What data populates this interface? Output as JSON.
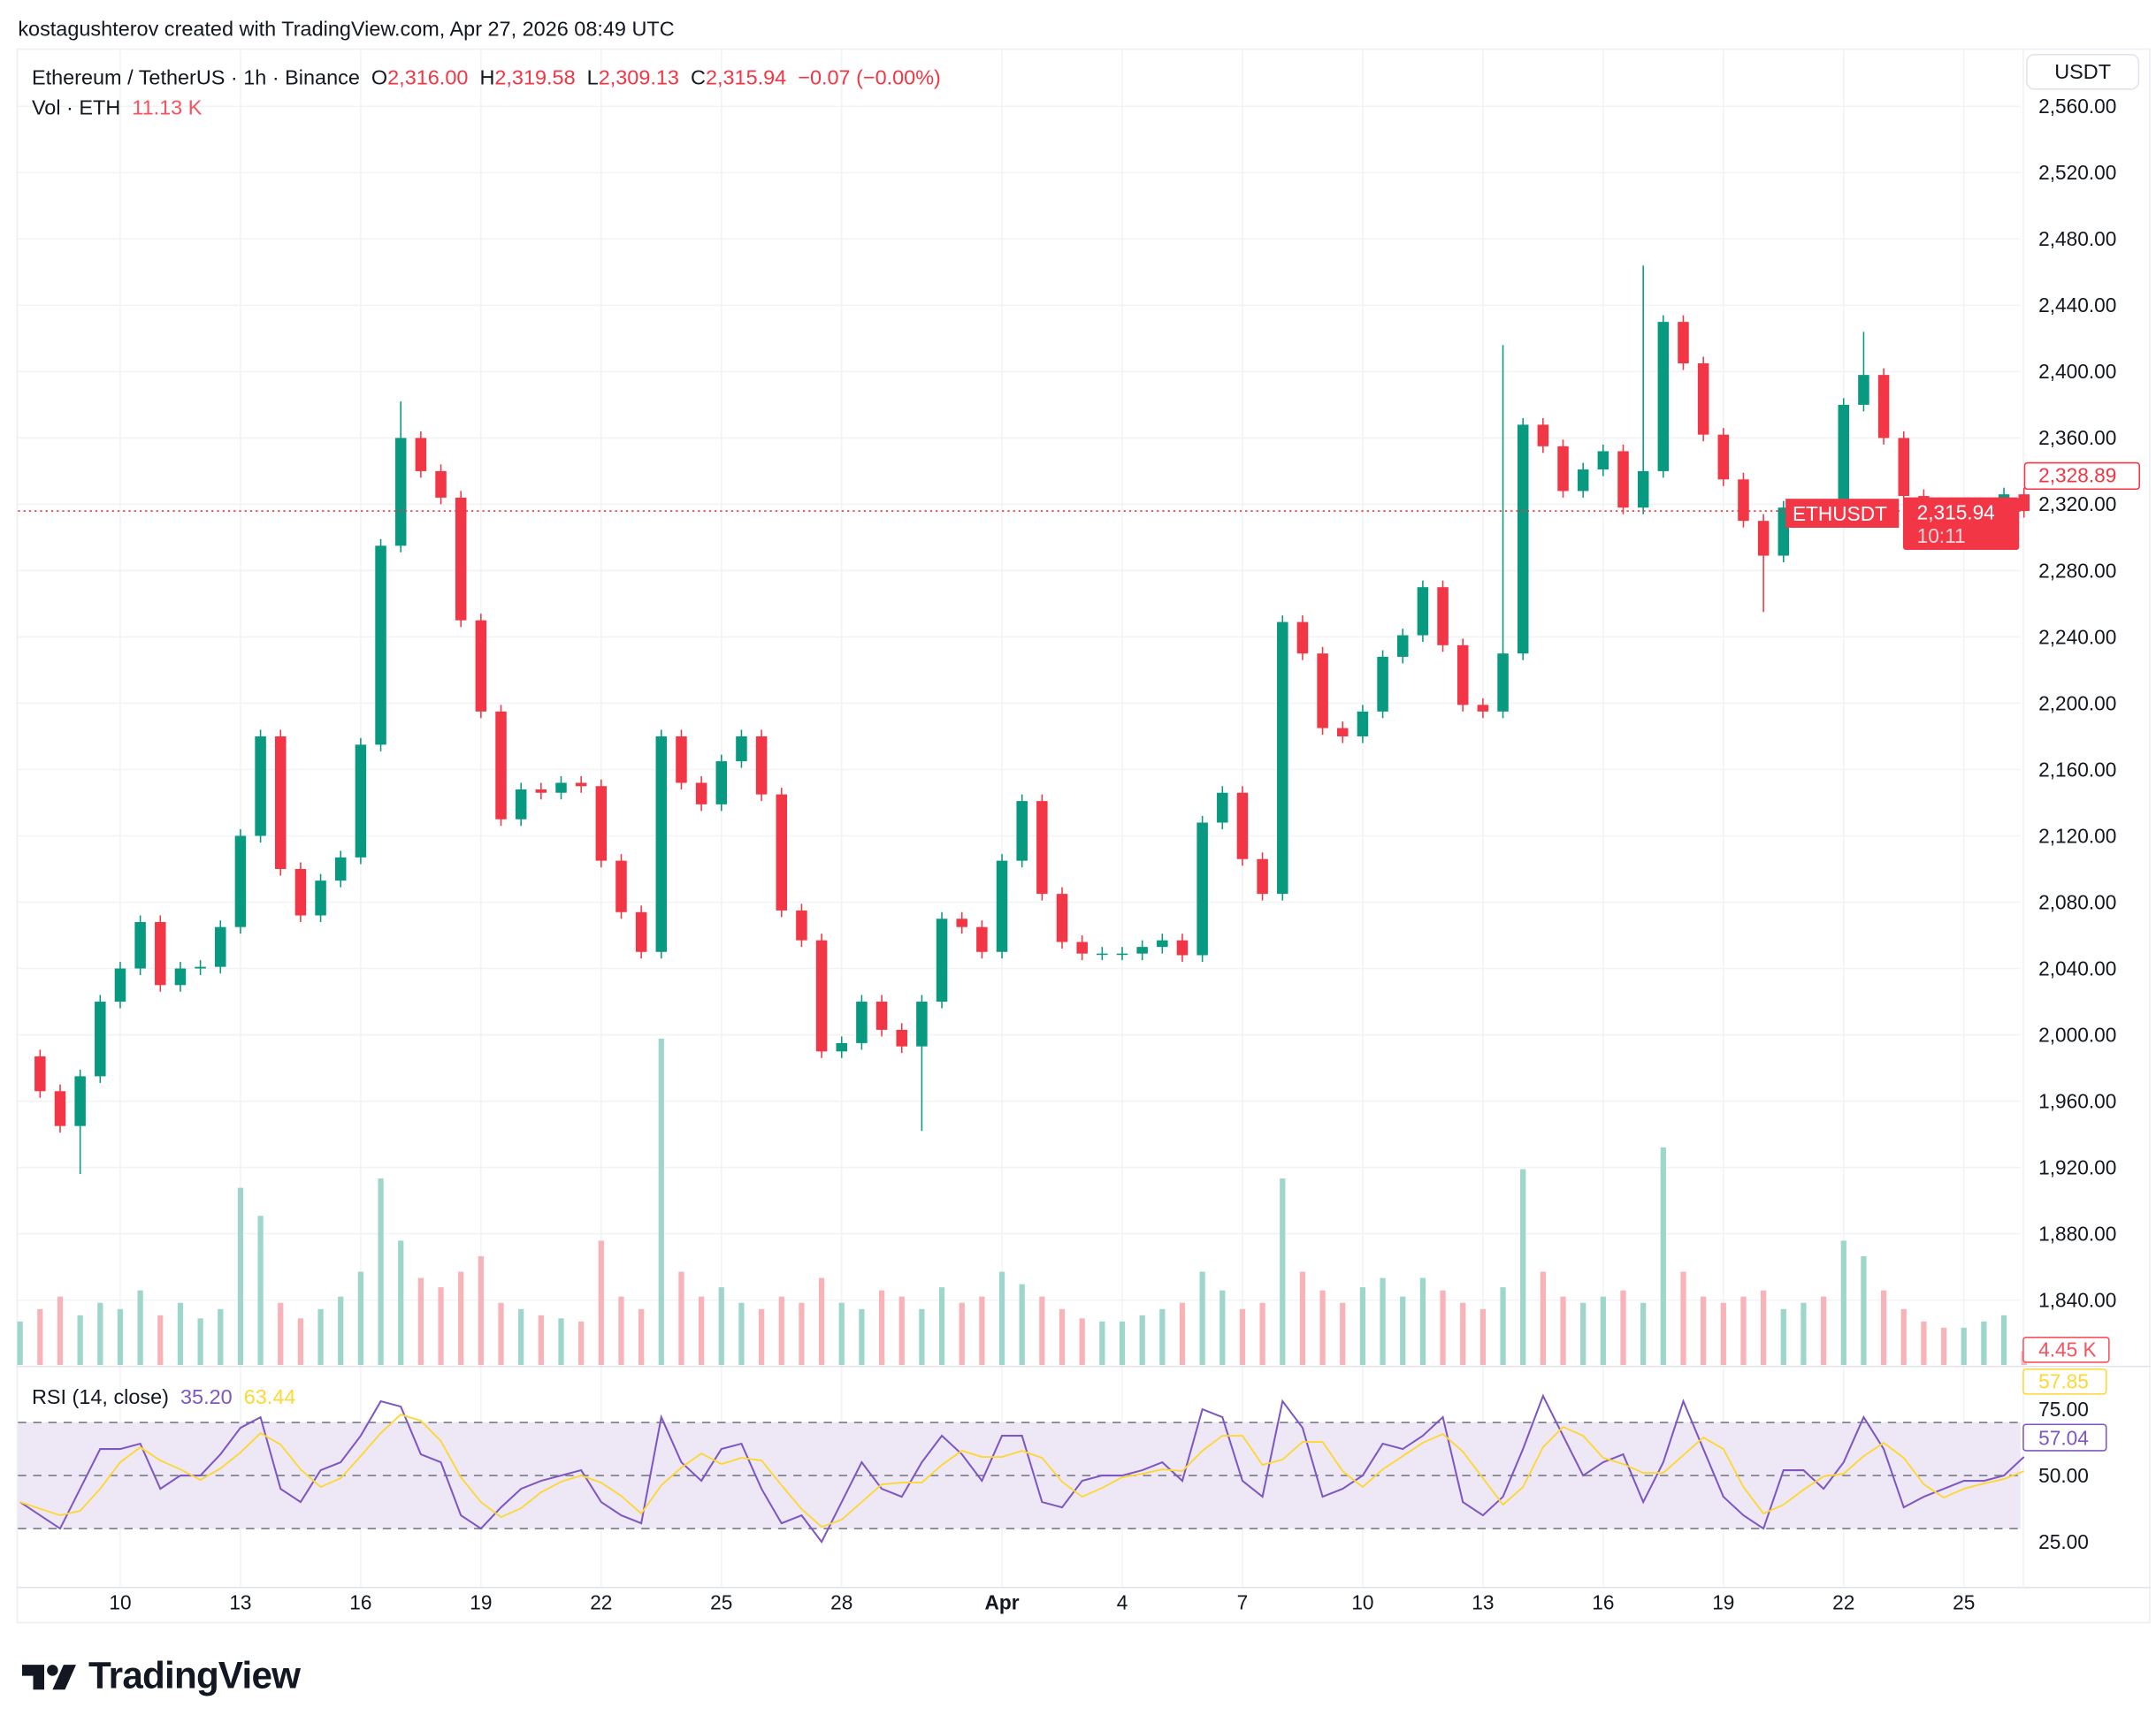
{
  "credit": "kostagushterov created with TradingView.com, Apr 27, 2026 08:49 UTC",
  "legend": {
    "symbol": "Ethereum / TetherUS · 1h · Binance",
    "open_label": "O",
    "open": "2,316.00",
    "high_label": "H",
    "high": "2,319.58",
    "low_label": "L",
    "low": "2,309.13",
    "close_label": "C",
    "close": "2,315.94",
    "change": "−0.07 (−0.00%)",
    "vol_label": "Vol · ETH",
    "vol": "11.13 K"
  },
  "currency_button": "USDT",
  "price_labels": {
    "high_marker": "2,328.89",
    "symbol_tag": "ETHUSDT",
    "last_price": "2,315.94",
    "countdown": "10:11",
    "volume_last": "4.45 K",
    "rsi_ma_last": "57.85",
    "rsi_last": "57.04"
  },
  "rsi_legend": {
    "label": "RSI (14, close)",
    "rsi": "35.20",
    "ma": "63.44"
  },
  "colors": {
    "up": "#089981",
    "down": "#f23645",
    "rsi": "#7e57c2",
    "rsi_ma": "#fdd835",
    "rsi_band": "#ede7f6",
    "last_price": "#f23645"
  },
  "logo": "TradingView",
  "chart_data": {
    "type": "candlestick",
    "symbol": "ETHUSDT",
    "interval": "1h",
    "grid": true,
    "y_axis": {
      "ticks": [
        "2,560.00",
        "2,520.00",
        "2,480.00",
        "2,440.00",
        "2,400.00",
        "2,360.00",
        "2,320.00",
        "2,280.00",
        "2,240.00",
        "2,200.00",
        "2,160.00",
        "2,120.00",
        "2,080.00",
        "2,040.00",
        "2,000.00",
        "1,960.00",
        "1,920.00",
        "1,880.00",
        "1,840.00"
      ],
      "tick_values": [
        2560,
        2520,
        2480,
        2440,
        2400,
        2360,
        2320,
        2280,
        2240,
        2200,
        2160,
        2120,
        2080,
        2040,
        2000,
        1960,
        1920,
        1880,
        1840
      ]
    },
    "x_axis": {
      "ticks": [
        "10",
        "13",
        "16",
        "19",
        "22",
        "25",
        "28",
        "Apr",
        "4",
        "7",
        "10",
        "13",
        "16",
        "19",
        "22",
        "25"
      ],
      "tick_days": [
        10,
        13,
        16,
        19,
        22,
        25,
        28,
        32,
        35,
        38,
        41,
        44,
        47,
        50,
        53,
        56
      ]
    },
    "first_day_march": 7.5,
    "step_days": 0.5,
    "close": [
      1987,
      1966,
      1945,
      1975,
      2020,
      2040,
      2068,
      2030,
      2040,
      2041,
      2065,
      2120,
      2180,
      2100,
      2072,
      2093,
      2107,
      2175,
      2295,
      2360,
      2340,
      2324,
      2250,
      2195,
      2130,
      2148,
      2146,
      2152,
      2150,
      2105,
      2074,
      2050,
      2180,
      2152,
      2139,
      2165,
      2180,
      2145,
      2075,
      2057,
      1990,
      1995,
      2020,
      2003,
      1993,
      2020,
      2070,
      2065,
      2050,
      2105,
      2141,
      2085,
      2056,
      2049,
      2049,
      2049,
      2053,
      2057,
      2048,
      2128,
      2146,
      2106,
      2085,
      2249,
      2230,
      2185,
      2180,
      2195,
      2228,
      2241,
      2270,
      2235,
      2199,
      2195,
      2230,
      2368,
      2355,
      2328,
      2341,
      2352,
      2318,
      2340,
      2430,
      2405,
      2362,
      2335,
      2310,
      2289,
      2318,
      2318,
      2310,
      2380,
      2398,
      2360,
      2325,
      2320,
      2314,
      2316,
      2316,
      2326,
      2315.94
    ],
    "notable_highs": [
      {
        "day": 17,
        "price": 2382
      },
      {
        "day": 44.5,
        "price": 2416
      },
      {
        "day": 48.2,
        "price": 2464
      },
      {
        "day": 53.5,
        "price": 2424
      }
    ],
    "notable_lows": [
      {
        "day": 8.9,
        "price": 1916
      },
      {
        "day": 29.9,
        "price": 1942
      },
      {
        "day": 50.9,
        "price": 2255
      }
    ],
    "last_price": 2315.94,
    "volume_k": [
      14,
      18,
      22,
      16,
      20,
      18,
      24,
      16,
      20,
      15,
      18,
      57,
      48,
      20,
      15,
      18,
      22,
      30,
      60,
      40,
      28,
      25,
      30,
      35,
      20,
      18,
      16,
      15,
      14,
      40,
      22,
      18,
      105,
      30,
      22,
      25,
      20,
      18,
      22,
      20,
      28,
      20,
      18,
      24,
      22,
      18,
      25,
      20,
      22,
      30,
      26,
      22,
      18,
      15,
      14,
      14,
      16,
      18,
      20,
      30,
      24,
      18,
      20,
      60,
      30,
      24,
      20,
      25,
      28,
      22,
      28,
      24,
      20,
      18,
      25,
      63,
      30,
      22,
      20,
      22,
      24,
      20,
      70,
      30,
      22,
      20,
      22,
      24,
      18,
      20,
      22,
      40,
      35,
      24,
      18,
      14,
      12,
      12,
      14,
      16,
      4.45
    ],
    "rsi": [
      40,
      35,
      30,
      45,
      60,
      60,
      62,
      45,
      50,
      50,
      58,
      68,
      72,
      45,
      40,
      52,
      55,
      65,
      78,
      76,
      58,
      55,
      35,
      30,
      38,
      45,
      48,
      50,
      52,
      40,
      35,
      32,
      72,
      55,
      48,
      60,
      62,
      45,
      32,
      35,
      25,
      40,
      55,
      45,
      42,
      55,
      65,
      58,
      48,
      65,
      65,
      40,
      38,
      48,
      50,
      50,
      52,
      55,
      48,
      75,
      72,
      48,
      42,
      78,
      68,
      42,
      45,
      50,
      62,
      60,
      65,
      72,
      40,
      35,
      42,
      60,
      80,
      65,
      50,
      55,
      58,
      40,
      55,
      78,
      60,
      42,
      35,
      30,
      52,
      52,
      45,
      55,
      72,
      60,
      38,
      42,
      45,
      48,
      48,
      50,
      57.04
    ],
    "rsi_axis": {
      "ticks": [
        "75.00",
        "50.00",
        "25.00"
      ],
      "tick_values": [
        75,
        50,
        25
      ],
      "band": [
        30,
        70
      ]
    }
  }
}
